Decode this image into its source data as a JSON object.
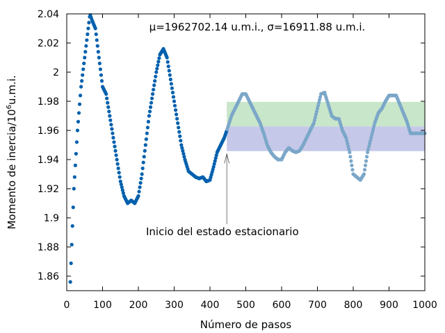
{
  "chart_data": {
    "type": "scatter",
    "title": "",
    "xlabel": "Número de pasos",
    "ylabel_prefix": "Momento de inercia/10",
    "ylabel_exp": "6",
    "ylabel_suffix": "u.m.i.",
    "xlim": [
      0,
      1000
    ],
    "ylim": [
      1.85,
      2.04
    ],
    "x_ticks": [
      0,
      100,
      200,
      300,
      400,
      500,
      600,
      700,
      800,
      900,
      1000
    ],
    "y_ticks": [
      1.86,
      1.88,
      1.9,
      1.92,
      1.94,
      1.96,
      1.98,
      2.0,
      2.02,
      2.04
    ],
    "y_tick_labels": [
      "1.86",
      "1.88",
      "1.9",
      "1.92",
      "1.94",
      "1.96",
      "1.98",
      "2",
      "2.02",
      "2.04"
    ],
    "grid": false,
    "stats_annotation": "μ=1962702.14 u.m.i., σ=16911.88 u.m.i.",
    "arrow_annotation": "Inicio del estado estacionario",
    "arrow_x": 447,
    "arrow_tip_y": 1.944,
    "steady_start": 447,
    "mean": 1.9627,
    "sigma": 0.0169,
    "colors": {
      "points": "#0060ad",
      "points_steady": "#7ba7c9",
      "band_upper": "#c8e6c9",
      "band_lower": "#c5c8e8"
    },
    "series": [
      {
        "x": [
          10,
          20,
          30,
          40,
          50,
          60,
          65,
          70,
          80,
          90,
          100,
          110,
          120,
          130,
          140,
          150,
          160,
          170,
          180,
          190,
          200,
          210,
          220,
          230,
          240,
          250,
          260,
          270,
          280,
          290,
          300,
          310,
          320,
          330,
          340,
          350,
          360,
          370,
          380,
          390,
          400,
          410,
          420,
          430,
          440,
          447,
          460,
          470,
          480,
          490,
          500,
          510,
          520,
          530,
          540,
          550,
          560,
          570,
          580,
          590,
          600,
          610,
          620,
          630,
          640,
          650,
          660,
          670,
          680,
          690,
          700,
          710,
          720,
          730,
          740,
          750,
          760,
          770,
          780,
          790,
          800,
          810,
          820,
          830,
          840,
          850,
          860,
          870,
          880,
          890,
          900,
          910,
          920,
          930,
          940,
          950,
          960,
          970,
          980,
          990,
          1000
        ],
        "y": [
          1.856,
          1.92,
          1.96,
          1.99,
          2.01,
          2.03,
          2.04,
          2.036,
          2.03,
          2.01,
          1.99,
          1.985,
          1.97,
          1.955,
          1.94,
          1.925,
          1.915,
          1.91,
          1.912,
          1.91,
          1.915,
          1.93,
          1.95,
          1.97,
          1.985,
          2.0,
          2.012,
          2.016,
          2.01,
          1.995,
          1.98,
          1.965,
          1.95,
          1.94,
          1.932,
          1.93,
          1.928,
          1.927,
          1.928,
          1.925,
          1.926,
          1.935,
          1.945,
          1.95,
          1.955,
          1.96,
          1.97,
          1.975,
          1.98,
          1.985,
          1.985,
          1.98,
          1.975,
          1.97,
          1.965,
          1.958,
          1.95,
          1.945,
          1.942,
          1.94,
          1.94,
          1.945,
          1.948,
          1.946,
          1.945,
          1.946,
          1.95,
          1.955,
          1.96,
          1.965,
          1.975,
          1.985,
          1.986,
          1.978,
          1.97,
          1.968,
          1.968,
          1.96,
          1.955,
          1.945,
          1.93,
          1.928,
          1.926,
          1.93,
          1.945,
          1.955,
          1.965,
          1.972,
          1.975,
          1.98,
          1.984,
          1.984,
          1.984,
          1.978,
          1.972,
          1.966,
          1.958,
          1.958,
          1.958,
          1.958,
          1.958
        ]
      }
    ]
  }
}
